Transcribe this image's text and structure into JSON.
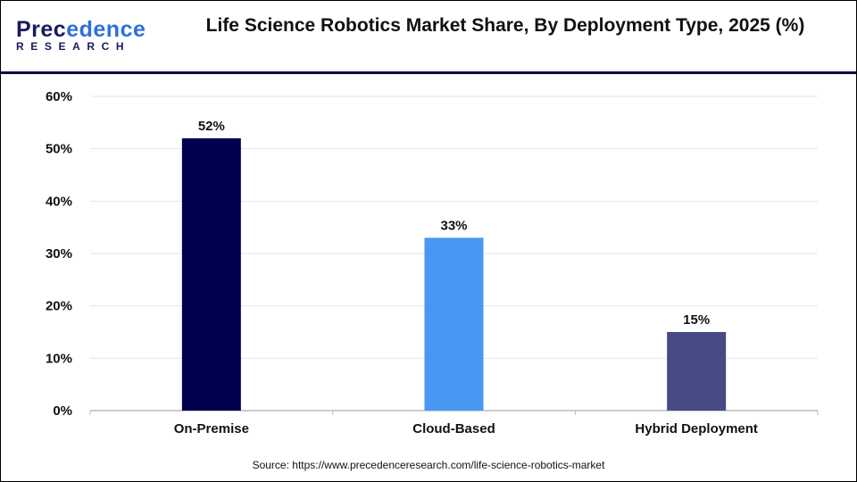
{
  "logo": {
    "line1_a": "Prec",
    "line1_b": "edence",
    "line2": "RESEARCH"
  },
  "title": "Life Science Robotics Market Share, By Deployment Type, 2025 (%)",
  "source": "Source: https://www.precedenceresearch.com/life-science-robotics-market",
  "chart_data": {
    "type": "bar",
    "title": "Life Science Robotics Market Share, By Deployment Type, 2025 (%)",
    "categories": [
      "On-Premise",
      "Cloud-Based",
      "Hybrid Deployment"
    ],
    "values": [
      52,
      33,
      15
    ],
    "data_labels": [
      "52%",
      "33%",
      "15%"
    ],
    "colors": [
      "#000050",
      "#4897f2",
      "#474a84"
    ],
    "ylim": [
      0,
      60
    ],
    "yticks": [
      "0%",
      "10%",
      "20%",
      "30%",
      "40%",
      "50%",
      "60%"
    ],
    "grid": true,
    "xlabel": "",
    "ylabel": ""
  }
}
